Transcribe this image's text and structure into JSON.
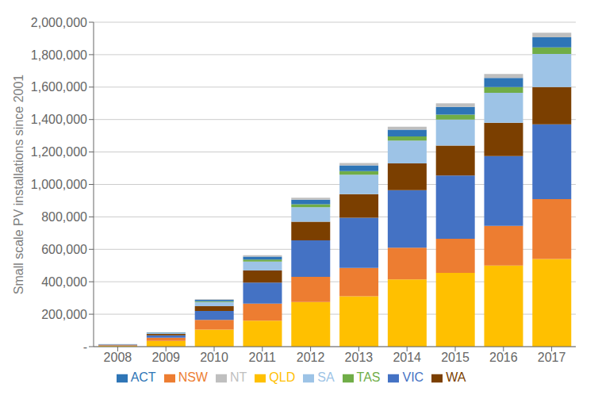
{
  "chart_data": {
    "type": "bar",
    "stacked": true,
    "ylabel": "Small scale PV installations since 2001",
    "categories": [
      "2008",
      "2009",
      "2010",
      "2011",
      "2012",
      "2013",
      "2014",
      "2015",
      "2016",
      "2017"
    ],
    "series": [
      {
        "name": "QLD",
        "color": "#FFC000",
        "values": [
          5000,
          35000,
          105000,
          160000,
          275000,
          310000,
          415000,
          455000,
          500000,
          540000
        ]
      },
      {
        "name": "NSW",
        "color": "#ED7D31",
        "values": [
          4000,
          20000,
          60000,
          105000,
          155000,
          175000,
          195000,
          210000,
          245000,
          370000
        ]
      },
      {
        "name": "VIC",
        "color": "#4472C4",
        "values": [
          3000,
          15000,
          55000,
          130000,
          225000,
          310000,
          355000,
          390000,
          430000,
          460000
        ]
      },
      {
        "name": "WA",
        "color": "#7B3F00",
        "values": [
          2000,
          8000,
          30000,
          75000,
          115000,
          145000,
          165000,
          185000,
          205000,
          230000
        ]
      },
      {
        "name": "SA",
        "color": "#9DC3E6",
        "values": [
          1500,
          6000,
          25000,
          55000,
          90000,
          120000,
          140000,
          160000,
          185000,
          205000
        ]
      },
      {
        "name": "TAS",
        "color": "#70AD47",
        "values": [
          300,
          1500,
          5000,
          12000,
          18000,
          22000,
          26000,
          30000,
          35000,
          40000
        ]
      },
      {
        "name": "ACT",
        "color": "#2E75B6",
        "values": [
          300,
          2000,
          8000,
          18000,
          28000,
          35000,
          42000,
          48000,
          56000,
          62000
        ]
      },
      {
        "name": "NT",
        "color": "#BFBFBF",
        "values": [
          200,
          1000,
          4000,
          8000,
          12000,
          15000,
          18000,
          22000,
          25000,
          28000
        ]
      }
    ],
    "ylim": [
      0,
      2000000
    ],
    "yticks": [
      {
        "value": 0,
        "label": "-"
      },
      {
        "value": 200000,
        "label": "200,000"
      },
      {
        "value": 400000,
        "label": "400,000"
      },
      {
        "value": 600000,
        "label": "600,000"
      },
      {
        "value": 800000,
        "label": "800,000"
      },
      {
        "value": 1000000,
        "label": "1,000,000"
      },
      {
        "value": 1200000,
        "label": "1,200,000"
      },
      {
        "value": 1400000,
        "label": "1,400,000"
      },
      {
        "value": 1600000,
        "label": "1,600,000"
      },
      {
        "value": 1800000,
        "label": "1,800,000"
      },
      {
        "value": 2000000,
        "label": "2,000,000"
      }
    ],
    "grid": true,
    "legend": "bottom"
  }
}
